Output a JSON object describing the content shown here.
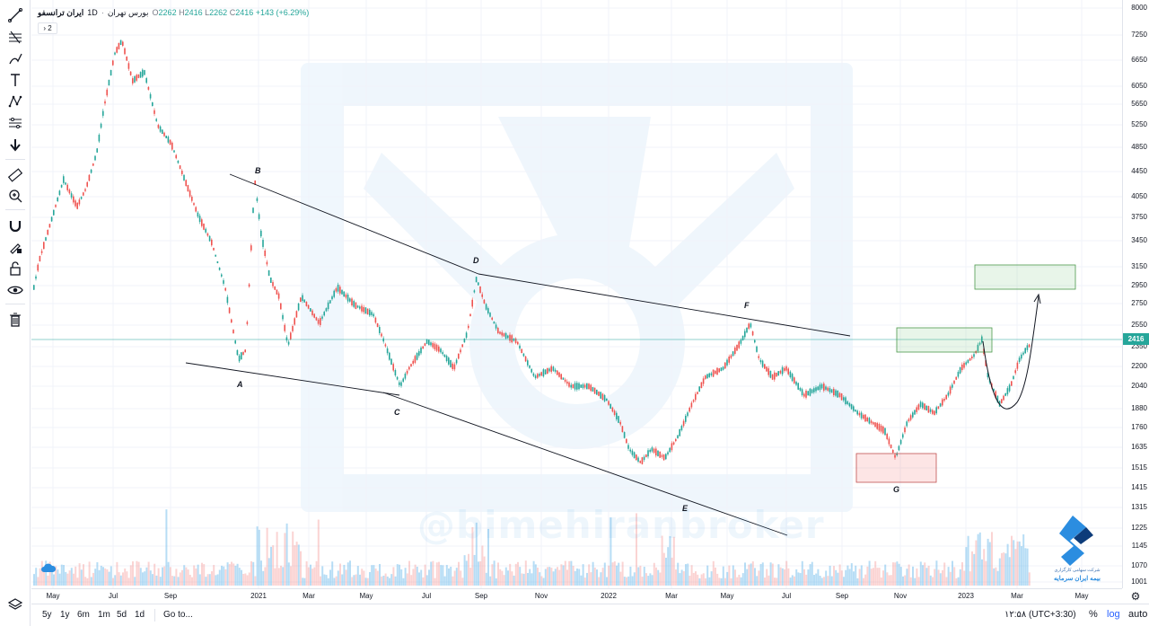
{
  "legend": {
    "symbol": "ایران ترانسفو",
    "timeframe": "1D",
    "exchange": "بورس تهران",
    "open_key": "O",
    "open": "2262",
    "high_key": "H",
    "high": "2416",
    "low_key": "L",
    "low": "2262",
    "close_key": "C",
    "close": "2416",
    "change": "+143 (+6.29%)",
    "toggle_label": "2"
  },
  "current_price": "2416",
  "price_axis": [
    "8000",
    "7250",
    "6650",
    "6050",
    "5650",
    "5250",
    "4850",
    "4450",
    "4050",
    "3750",
    "3450",
    "3150",
    "2950",
    "2750",
    "2550",
    "2350",
    "2200",
    "2040",
    "1880",
    "1760",
    "1635",
    "1515",
    "1415",
    "1315",
    "1225",
    "1145",
    "1070",
    "1001"
  ],
  "time_axis": [
    "May",
    "Jul",
    "Sep",
    "2021",
    "Mar",
    "May",
    "Jul",
    "Sep",
    "Nov",
    "2022",
    "Mar",
    "May",
    "Jul",
    "Sep",
    "Nov",
    "2023",
    "Mar",
    "May"
  ],
  "wave_labels": [
    "A",
    "B",
    "C",
    "D",
    "E",
    "F",
    "G"
  ],
  "watermark": "@bimehiranbroker",
  "bottom_bar": {
    "ranges": [
      "5y",
      "1y",
      "6m",
      "1m",
      "5d",
      "1d"
    ],
    "goto": "Go to...",
    "clock": "۱۲:۵۸ (UTC+3:30)",
    "percent": "%",
    "log": "log",
    "auto": "auto"
  },
  "brand": {
    "line1": "شرکت سهامی کارگزاری",
    "line2": "بیمه ایران سرمایه"
  },
  "colors": {
    "up": "#26a69a",
    "down": "#ef5350",
    "volume": "#5fb4e8",
    "price_line": "#26a69a",
    "log_active": "#2962ff"
  }
}
